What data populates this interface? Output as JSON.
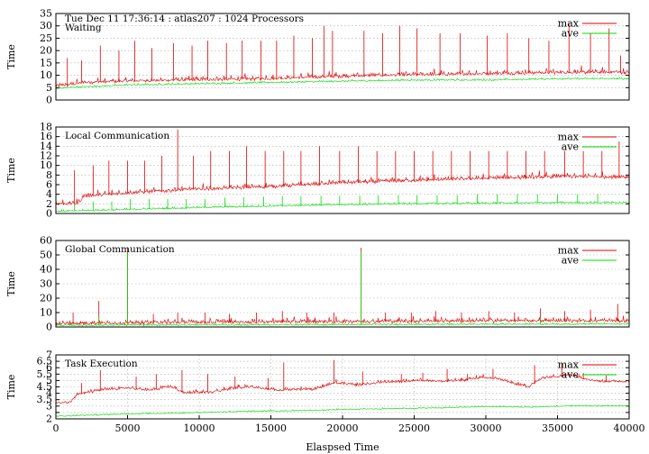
{
  "chart_data": [
    {
      "type": "line",
      "id": "waiting",
      "title": "Waiting",
      "header": "Tue Dec 11 17:36:14 : atlas207 : 1024 Processors",
      "ylabel": "Time",
      "ylim": [
        0,
        35
      ],
      "yticks": [
        0,
        5,
        10,
        15,
        20,
        25,
        30,
        35
      ],
      "xlim": [
        0,
        40000
      ],
      "grid": true,
      "legend": "top-right",
      "series": [
        {
          "name": "max",
          "color": "#e00000",
          "values": [
            [
              0,
              5.5
            ],
            [
              1000,
              6
            ],
            [
              2000,
              7
            ],
            [
              5000,
              7.5
            ],
            [
              10000,
              8
            ],
            [
              15000,
              8.5
            ],
            [
              20000,
              9.5
            ],
            [
              25000,
              10
            ],
            [
              30000,
              10.5
            ],
            [
              35000,
              11
            ],
            [
              40000,
              11
            ]
          ],
          "spikes": [
            [
              800,
              17
            ],
            [
              1800,
              16
            ],
            [
              3100,
              22
            ],
            [
              4400,
              20
            ],
            [
              5500,
              24
            ],
            [
              6700,
              21
            ],
            [
              8200,
              23
            ],
            [
              9500,
              22
            ],
            [
              10600,
              24
            ],
            [
              11900,
              23
            ],
            [
              13000,
              24
            ],
            [
              14300,
              24
            ],
            [
              15400,
              24
            ],
            [
              16600,
              26
            ],
            [
              17900,
              25
            ],
            [
              18700,
              30
            ],
            [
              19300,
              28
            ],
            [
              21500,
              28
            ],
            [
              22800,
              27
            ],
            [
              24000,
              30
            ],
            [
              25200,
              29
            ],
            [
              26800,
              27
            ],
            [
              28200,
              27
            ],
            [
              30100,
              26
            ],
            [
              31500,
              27
            ],
            [
              33000,
              25
            ],
            [
              34400,
              24
            ],
            [
              35800,
              31
            ],
            [
              37300,
              27
            ],
            [
              38600,
              29
            ],
            [
              39400,
              18
            ]
          ]
        },
        {
          "name": "ave",
          "color": "#00dd00",
          "values": [
            [
              0,
              4.5
            ],
            [
              1000,
              5
            ],
            [
              5000,
              6
            ],
            [
              10000,
              6.5
            ],
            [
              15000,
              7
            ],
            [
              20000,
              7.5
            ],
            [
              25000,
              8
            ],
            [
              30000,
              8
            ],
            [
              35000,
              8.5
            ],
            [
              40000,
              8.5
            ]
          ]
        }
      ]
    },
    {
      "type": "line",
      "id": "local",
      "title": "Local Communication",
      "ylabel": "Time",
      "ylim": [
        0,
        18
      ],
      "yticks": [
        0,
        2,
        4,
        6,
        8,
        10,
        12,
        14,
        16,
        18
      ],
      "xlim": [
        0,
        40000
      ],
      "grid": true,
      "legend": "top-right",
      "series": [
        {
          "name": "max",
          "color": "#e00000",
          "values": [
            [
              0,
              2
            ],
            [
              1500,
              2
            ],
            [
              2000,
              3.5
            ],
            [
              5000,
              4.2
            ],
            [
              10000,
              5
            ],
            [
              15000,
              5.5
            ],
            [
              20000,
              6.3
            ],
            [
              25000,
              6.8
            ],
            [
              30000,
              7.2
            ],
            [
              35000,
              7.6
            ],
            [
              40000,
              7.5
            ]
          ],
          "spikes": [
            [
              1300,
              9
            ],
            [
              2600,
              10
            ],
            [
              3700,
              11
            ],
            [
              5000,
              11
            ],
            [
              6200,
              11
            ],
            [
              7400,
              12
            ],
            [
              8500,
              17.5
            ],
            [
              9600,
              12
            ],
            [
              10800,
              13
            ],
            [
              12100,
              13
            ],
            [
              13300,
              14
            ],
            [
              14600,
              13
            ],
            [
              15900,
              13
            ],
            [
              17100,
              13
            ],
            [
              18400,
              14
            ],
            [
              19800,
              13
            ],
            [
              21100,
              14
            ],
            [
              22400,
              13
            ],
            [
              23700,
              13
            ],
            [
              25000,
              13
            ],
            [
              26300,
              13
            ],
            [
              27600,
              13
            ],
            [
              28900,
              13
            ],
            [
              30200,
              13
            ],
            [
              31500,
              13
            ],
            [
              32800,
              13
            ],
            [
              34100,
              13
            ],
            [
              35500,
              13
            ],
            [
              36800,
              13
            ],
            [
              38100,
              13
            ],
            [
              39300,
              15
            ]
          ]
        },
        {
          "name": "ave",
          "color": "#00dd00",
          "values": [
            [
              0,
              0.4
            ],
            [
              5000,
              0.8
            ],
            [
              10000,
              1.2
            ],
            [
              15000,
              1.5
            ],
            [
              20000,
              1.8
            ],
            [
              25000,
              2
            ],
            [
              30000,
              2.1
            ],
            [
              35000,
              2.2
            ],
            [
              40000,
              2.2
            ]
          ],
          "spikes": [
            [
              1300,
              2
            ],
            [
              2600,
              2.5
            ],
            [
              3900,
              2.5
            ],
            [
              5200,
              3
            ],
            [
              6500,
              3
            ],
            [
              7800,
              3
            ],
            [
              9100,
              3
            ],
            [
              10400,
              3
            ],
            [
              11800,
              3.3
            ],
            [
              13100,
              3.4
            ],
            [
              14500,
              3.5
            ],
            [
              15800,
              3.6
            ],
            [
              17100,
              3.6
            ],
            [
              18500,
              3.7
            ],
            [
              19800,
              3.7
            ],
            [
              21200,
              3.7
            ],
            [
              22500,
              3.8
            ],
            [
              23900,
              3.8
            ],
            [
              25200,
              3.8
            ],
            [
              26600,
              3.8
            ],
            [
              28000,
              3.8
            ],
            [
              29400,
              4
            ],
            [
              30800,
              4
            ],
            [
              32200,
              4
            ],
            [
              33600,
              4
            ],
            [
              35000,
              4
            ],
            [
              36400,
              4
            ],
            [
              37800,
              4
            ]
          ]
        }
      ]
    },
    {
      "type": "line",
      "id": "global",
      "title": "Global Communication",
      "ylabel": "Time",
      "ylim": [
        0,
        60
      ],
      "yticks": [
        0,
        10,
        20,
        30,
        40,
        50,
        60
      ],
      "xlim": [
        0,
        40000
      ],
      "grid": true,
      "legend": "top-right",
      "series": [
        {
          "name": "max",
          "color": "#e00000",
          "values": [
            [
              0,
              2
            ],
            [
              10000,
              3
            ],
            [
              20000,
              3.5
            ],
            [
              30000,
              4
            ],
            [
              40000,
              4
            ]
          ],
          "spikes": [
            [
              1200,
              10
            ],
            [
              3000,
              18
            ],
            [
              5000,
              55
            ],
            [
              6800,
              9
            ],
            [
              8500,
              10
            ],
            [
              10400,
              10
            ],
            [
              12100,
              9
            ],
            [
              14000,
              10
            ],
            [
              15800,
              11
            ],
            [
              17500,
              10
            ],
            [
              19400,
              10
            ],
            [
              21300,
              55
            ],
            [
              23000,
              10
            ],
            [
              24800,
              10
            ],
            [
              26500,
              11
            ],
            [
              28300,
              10
            ],
            [
              30200,
              11
            ],
            [
              32000,
              10
            ],
            [
              33800,
              13
            ],
            [
              35500,
              11
            ],
            [
              37300,
              12
            ],
            [
              39200,
              16
            ]
          ]
        },
        {
          "name": "ave",
          "color": "#00dd00",
          "values": [
            [
              0,
              1
            ],
            [
              10000,
              1.3
            ],
            [
              20000,
              1.5
            ],
            [
              30000,
              1.8
            ],
            [
              40000,
              2
            ]
          ],
          "spikes": [
            [
              5000,
              52
            ],
            [
              21300,
              52
            ],
            [
              3000,
              7
            ],
            [
              33800,
              6
            ]
          ]
        }
      ]
    },
    {
      "type": "line",
      "id": "task",
      "title": "Task Execution",
      "ylabel": "Time",
      "xlabel": "Elaspsed Time",
      "ylim": [
        2,
        7
      ],
      "yticks": [
        2,
        2.5,
        3,
        3.5,
        4,
        4.5,
        5,
        5.5,
        6,
        6.5,
        7
      ],
      "yticklabels": [
        "2",
        "",
        "3",
        "3.5",
        "4",
        "4.5",
        "5",
        "5.5",
        "6",
        "6.5",
        "7"
      ],
      "xlim": [
        0,
        40000
      ],
      "xticks": [
        0,
        5000,
        10000,
        15000,
        20000,
        25000,
        30000,
        35000,
        40000
      ],
      "grid": true,
      "legend": "top-right",
      "series": [
        {
          "name": "max",
          "color": "#e00000",
          "values": [
            [
              0,
              3.2
            ],
            [
              1000,
              3.3
            ],
            [
              1500,
              3.9
            ],
            [
              3000,
              4.2
            ],
            [
              5000,
              4.4
            ],
            [
              6500,
              4.2
            ],
            [
              8000,
              4.5
            ],
            [
              9000,
              4.0
            ],
            [
              11000,
              4.1
            ],
            [
              12500,
              4.4
            ],
            [
              13500,
              4.5
            ],
            [
              15500,
              4.2
            ],
            [
              16500,
              4.3
            ],
            [
              18000,
              4.3
            ],
            [
              19500,
              4.8
            ],
            [
              21000,
              4.6
            ],
            [
              22500,
              4.8
            ],
            [
              24000,
              4.9
            ],
            [
              25500,
              5.0
            ],
            [
              27000,
              4.9
            ],
            [
              28500,
              5.0
            ],
            [
              29500,
              5.2
            ],
            [
              31000,
              5.1
            ],
            [
              32000,
              4.7
            ],
            [
              33000,
              4.5
            ],
            [
              34000,
              5.2
            ],
            [
              36000,
              5.4
            ],
            [
              37000,
              5.1
            ],
            [
              38000,
              4.9
            ],
            [
              39500,
              4.9
            ]
          ],
          "spikes": [
            [
              1800,
              4.8
            ],
            [
              3100,
              5.8
            ],
            [
              5600,
              5.3
            ],
            [
              7000,
              5.5
            ],
            [
              8800,
              5.8
            ],
            [
              10600,
              5.5
            ],
            [
              12500,
              5.3
            ],
            [
              14800,
              5.2
            ],
            [
              15900,
              6.4
            ],
            [
              19400,
              6.6
            ],
            [
              21400,
              5.7
            ],
            [
              24100,
              5.5
            ],
            [
              25600,
              5.6
            ],
            [
              27300,
              5.9
            ],
            [
              28700,
              5.5
            ],
            [
              30500,
              5.9
            ],
            [
              33400,
              6.2
            ],
            [
              35300,
              6.3
            ],
            [
              36800,
              5.6
            ],
            [
              38400,
              5.4
            ]
          ]
        },
        {
          "name": "ave",
          "color": "#00dd00",
          "values": [
            [
              0,
              2.2
            ],
            [
              3000,
              2.3
            ],
            [
              6000,
              2.4
            ],
            [
              9000,
              2.45
            ],
            [
              12000,
              2.55
            ],
            [
              15000,
              2.6
            ],
            [
              18000,
              2.65
            ],
            [
              21000,
              2.75
            ],
            [
              24000,
              2.8
            ],
            [
              27000,
              2.85
            ],
            [
              30000,
              2.95
            ],
            [
              33000,
              2.9
            ],
            [
              36000,
              3.0
            ],
            [
              40000,
              3.0
            ]
          ]
        }
      ]
    }
  ]
}
